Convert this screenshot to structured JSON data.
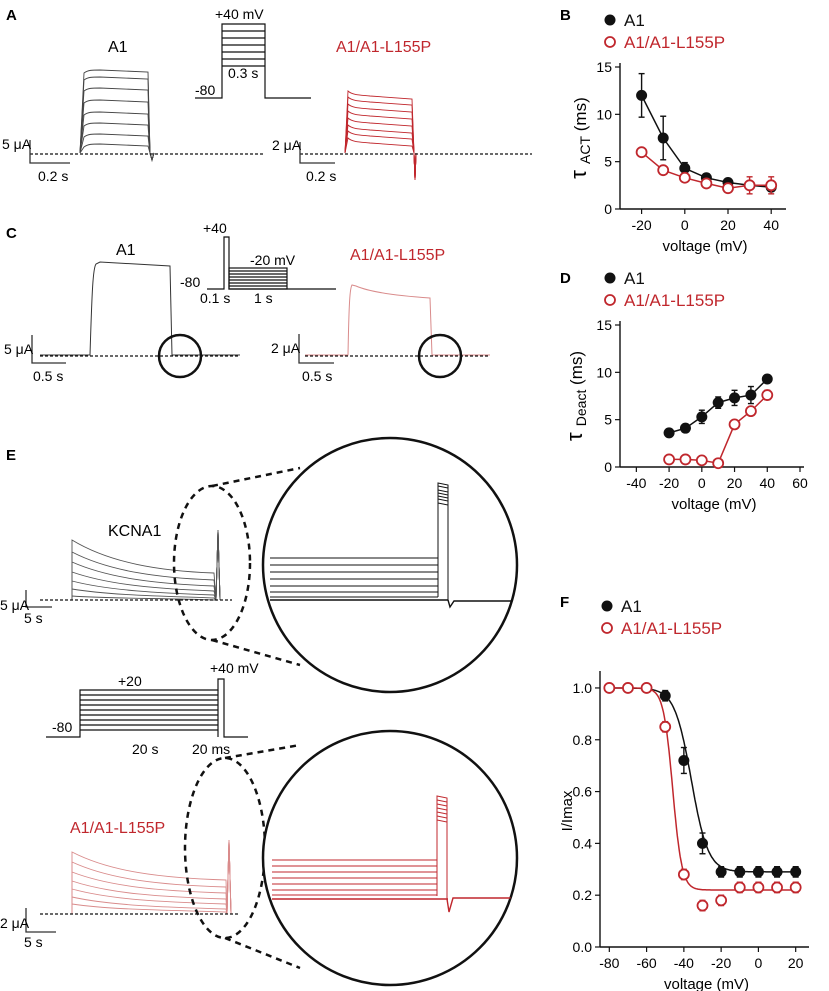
{
  "colors": {
    "wt": "#111111",
    "mut": "#c0272d",
    "mut_light": "#d98b8b",
    "scale": "#333333"
  },
  "panels": {
    "A": {
      "letter": "A",
      "wt_label": "A1",
      "mut_label": "A1/A1-L155P",
      "protocol": {
        "top": "+40 mV",
        "bottom": "-80",
        "duration": "0.3 s"
      },
      "scale_wt": {
        "amp": "5 μA",
        "time": "0.2 s"
      },
      "scale_mut": {
        "amp": "2 μA",
        "time": "0.2 s"
      }
    },
    "C": {
      "letter": "C",
      "wt_label": "A1",
      "mut_label": "A1/A1-L155P",
      "protocol": {
        "top": "+40",
        "bottom": "-80",
        "step": "-20 mV",
        "d1": "0.1 s",
        "d2": "1 s"
      },
      "scale_wt": {
        "amp": "5 μA",
        "time": "0.5 s"
      },
      "scale_mut": {
        "amp": "2 μA",
        "time": "0.5 s"
      }
    },
    "E": {
      "letter": "E",
      "wt_label": "KCNA1",
      "mut_label": "A1/A1-L155P",
      "protocol": {
        "left": "-80",
        "mid": "+20",
        "right": "+40 mV",
        "d1": "20 s",
        "d2": "20 ms"
      },
      "scale_wt": {
        "amp": "5 μA",
        "time": "5 s"
      },
      "scale_mut": {
        "amp": "2 μA",
        "time": "5 s"
      }
    }
  },
  "chart_data": [
    {
      "panel": "B",
      "type": "line",
      "xlabel": "voltage (mV)",
      "ylabel_main": "τ",
      "ylabel_sub": "ACT",
      "ylabel_unit": "(ms)",
      "xlim": [
        -30,
        45
      ],
      "ylim": [
        0,
        15
      ],
      "xticks": [
        -20,
        0,
        20,
        40
      ],
      "yticks": [
        0,
        5,
        10,
        15
      ],
      "x": [
        -20,
        -10,
        0,
        10,
        20,
        30,
        40
      ],
      "series": [
        {
          "name": "A1",
          "values": [
            12.0,
            7.5,
            4.3,
            3.3,
            2.8,
            2.5,
            2.3
          ],
          "errors": [
            2.3,
            2.3,
            0.6,
            0.3,
            0.2,
            0.4,
            0.4
          ]
        },
        {
          "name": "A1/A1-L155P",
          "values": [
            6.0,
            4.1,
            3.3,
            2.7,
            2.2,
            2.5,
            2.5
          ],
          "errors": [
            0.3,
            0.3,
            0.3,
            0.3,
            0.3,
            0.9,
            0.9
          ]
        }
      ],
      "legend": "top-left"
    },
    {
      "panel": "D",
      "type": "line",
      "xlabel": "voltage (mV)",
      "ylabel_main": "τ",
      "ylabel_sub": "Deact",
      "ylabel_unit": "(ms)",
      "xlim": [
        -50,
        60
      ],
      "ylim": [
        0,
        15
      ],
      "xticks": [
        -40,
        -20,
        0,
        20,
        40,
        60
      ],
      "yticks": [
        0,
        5,
        10,
        15
      ],
      "x": [
        -20,
        -10,
        0,
        10,
        20,
        30,
        40
      ],
      "series": [
        {
          "name": "A1",
          "values": [
            3.6,
            4.1,
            5.3,
            6.8,
            7.3,
            7.6,
            9.3
          ],
          "errors": [
            0.3,
            0.4,
            0.7,
            0.6,
            0.8,
            0.9,
            0.4
          ]
        },
        {
          "name": "A1/A1-L155P",
          "values": [
            0.8,
            0.8,
            0.7,
            0.4,
            4.5,
            5.9,
            7.6
          ],
          "errors": [
            0.1,
            0.1,
            0.1,
            0.1,
            0.3,
            0.4,
            0.5
          ]
        }
      ],
      "legend": "top-left"
    },
    {
      "panel": "F",
      "type": "line",
      "xlabel": "voltage (mV)",
      "ylabel_main": "I/Imax",
      "xlim": [
        -85,
        25
      ],
      "ylim": [
        0,
        1.05
      ],
      "xticks": [
        -80,
        -60,
        -40,
        -20,
        0,
        20
      ],
      "yticks": [
        0.0,
        0.2,
        0.4,
        0.6,
        0.8,
        1.0
      ],
      "x": [
        -80,
        -70,
        -60,
        -50,
        -40,
        -30,
        -20,
        -10,
        0,
        10,
        20
      ],
      "series": [
        {
          "name": "A1",
          "values": [
            1.0,
            1.0,
            1.0,
            0.97,
            0.72,
            0.4,
            0.29,
            0.29,
            0.29,
            0.29,
            0.29
          ],
          "errors": [
            0,
            0,
            0,
            0.02,
            0.05,
            0.04,
            0.02,
            0.02,
            0.02,
            0.02,
            0.02
          ],
          "fit": {
            "v_half": -36,
            "k": 4.5,
            "bottom": 0.29
          }
        },
        {
          "name": "A1/A1-L155P",
          "values": [
            1.0,
            1.0,
            1.0,
            0.85,
            0.28,
            0.16,
            0.18,
            0.23,
            0.23,
            0.23,
            0.23
          ],
          "errors": [
            0,
            0,
            0,
            0.02,
            0.02,
            0.02,
            0.02,
            0.02,
            0.02,
            0.02,
            0.02
          ],
          "fit": {
            "v_half": -46,
            "k": 2.5,
            "bottom": 0.22
          }
        }
      ],
      "legend": "top-left"
    }
  ]
}
